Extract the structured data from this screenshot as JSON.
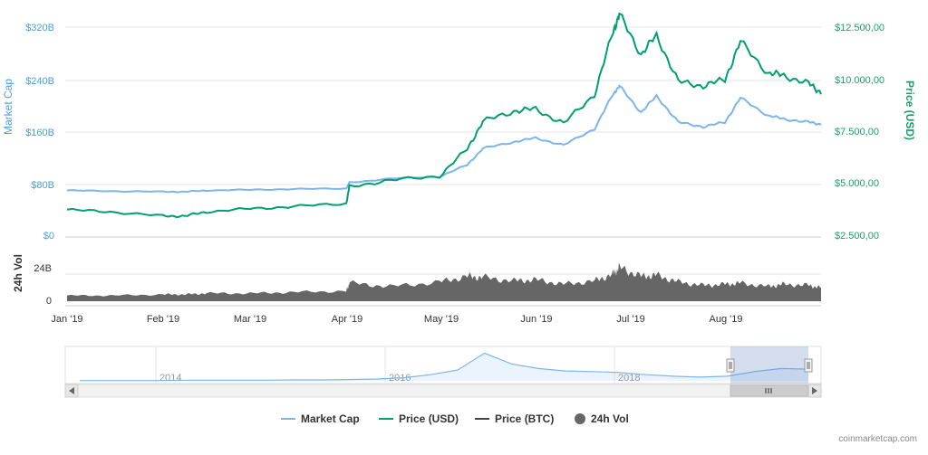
{
  "chart_data": {
    "type": "line",
    "x_ticks": [
      "Jan '19",
      "Feb '19",
      "Mar '19",
      "Apr '19",
      "May '19",
      "Jun '19",
      "Jul '19",
      "Aug '19"
    ],
    "y_left": {
      "title": "Market Cap",
      "ticks": [
        "$0",
        "$80B",
        "$160B",
        "$240B",
        "$320B"
      ],
      "ylim": [
        0,
        320
      ]
    },
    "y_right": {
      "title": "Price (USD)",
      "ticks": [
        "$2.500,00",
        "$5.000,00",
        "$7.500,00",
        "$10.000,00",
        "$12.500,00"
      ],
      "ylim": [
        2500,
        12500
      ]
    },
    "volume": {
      "title": "24h Vol",
      "ticks": [
        "0",
        "24B"
      ]
    },
    "x": [
      "2019-01-01",
      "2019-01-15",
      "2019-02-01",
      "2019-02-08",
      "2019-02-15",
      "2019-03-01",
      "2019-03-15",
      "2019-04-01",
      "2019-04-02",
      "2019-04-15",
      "2019-05-01",
      "2019-05-10",
      "2019-05-15",
      "2019-05-25",
      "2019-06-01",
      "2019-06-10",
      "2019-06-20",
      "2019-06-26",
      "2019-06-28",
      "2019-07-05",
      "2019-07-10",
      "2019-07-17",
      "2019-07-25",
      "2019-08-01",
      "2019-08-06",
      "2019-08-15",
      "2019-08-20",
      "2019-08-28",
      "2019-09-01"
    ],
    "series": [
      {
        "name": "Market Cap",
        "values": [
          71,
          70,
          69,
          69,
          71,
          72,
          73,
          74,
          83,
          89,
          92,
          110,
          135,
          145,
          151,
          140,
          165,
          218,
          230,
          190,
          215,
          175,
          168,
          175,
          212,
          185,
          180,
          175,
          172
        ]
      },
      {
        "name": "Price (USD)",
        "values": [
          3800,
          3700,
          3500,
          3500,
          3700,
          3850,
          3950,
          4100,
          4900,
          5200,
          5400,
          6700,
          8000,
          8500,
          8600,
          7900,
          9300,
          12300,
          13100,
          11200,
          12100,
          9900,
          9700,
          10000,
          11800,
          10300,
          10200,
          9800,
          9400
        ]
      },
      {
        "name": "24h Vol",
        "values": [
          5,
          5,
          6,
          6,
          7,
          7,
          8,
          9,
          16,
          13,
          17,
          22,
          21,
          18,
          19,
          15,
          18,
          24,
          30,
          22,
          23,
          17,
          14,
          15,
          16,
          13,
          15,
          14,
          12
        ]
      }
    ],
    "legend": [
      "Market Cap",
      "Price (USD)",
      "Price (BTC)",
      "24h Vol"
    ],
    "legend_position": "bottom",
    "navigator": {
      "year_labels": [
        "2014",
        "2016",
        "2018"
      ],
      "values": [
        0.01,
        0.01,
        0.01,
        0.01,
        0.02,
        0.02,
        0.02,
        0.02,
        0.03,
        0.03,
        0.04,
        0.06,
        0.1,
        0.2,
        0.35,
        0.9,
        0.55,
        0.4,
        0.32,
        0.3,
        0.27,
        0.2,
        0.15,
        0.12,
        0.15,
        0.3,
        0.4,
        0.38
      ]
    },
    "grid": true
  },
  "colors": {
    "market_cap": "#7cb5ec",
    "price_usd": "#009e73",
    "price_btc": "#434348",
    "volume": "#666666"
  },
  "credit": "coinmarketcap.com"
}
